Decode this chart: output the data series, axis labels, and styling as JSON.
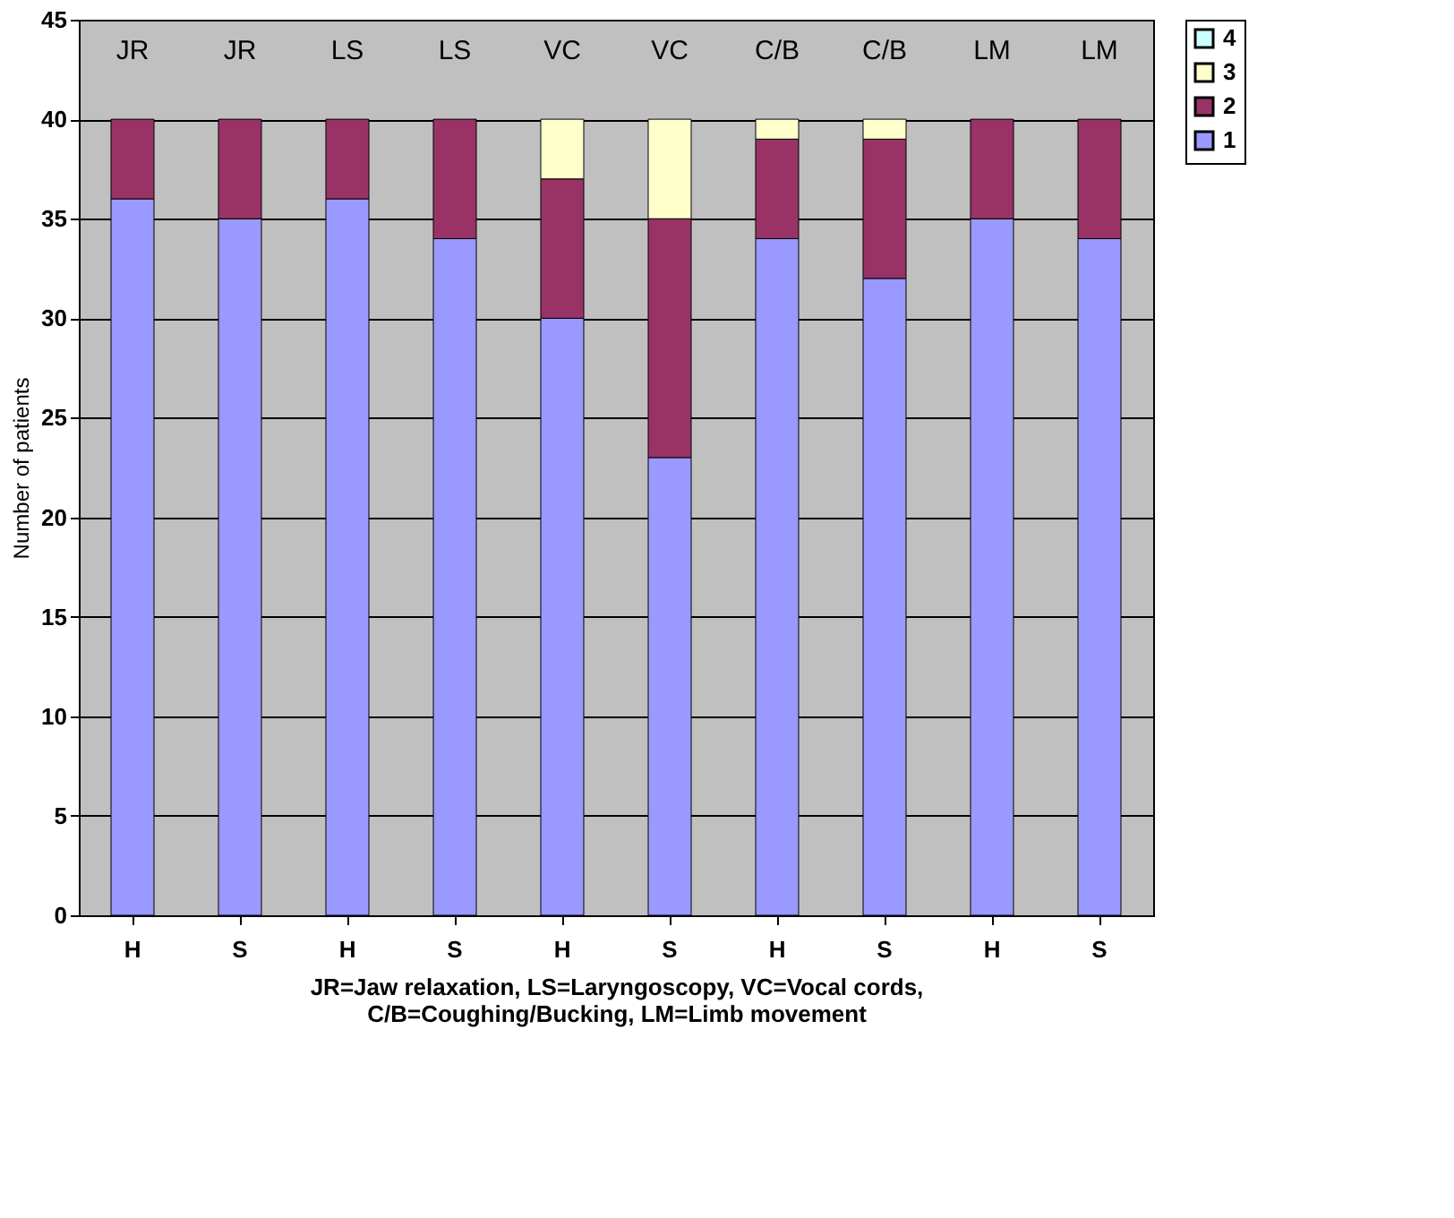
{
  "chart_data": {
    "type": "bar",
    "stacked": true,
    "ylabel": "Number of patients",
    "xlabel": "JR=Jaw relaxation, LS=Laryngoscopy, VC=Vocal cords,\nC/B=Coughing/Bucking, LM=Limb movement",
    "categories": [
      "H",
      "S",
      "H",
      "S",
      "H",
      "S",
      "H",
      "S",
      "H",
      "S"
    ],
    "annotations": [
      "JR",
      "JR",
      "LS",
      "LS",
      "VC",
      "VC",
      "C/B",
      "C/B",
      "LM",
      "LM"
    ],
    "series": [
      {
        "name": "1",
        "color": "#9999ff",
        "values": [
          36,
          35,
          36,
          34,
          30,
          23,
          34,
          32,
          35,
          34
        ]
      },
      {
        "name": "2",
        "color": "#993366",
        "values": [
          4,
          5,
          4,
          6,
          7,
          12,
          5,
          7,
          5,
          6
        ]
      },
      {
        "name": "3",
        "color": "#ffffcc",
        "values": [
          0,
          0,
          0,
          0,
          3,
          5,
          1,
          1,
          0,
          0
        ]
      },
      {
        "name": "4",
        "color": "#ccffff",
        "values": [
          0,
          0,
          0,
          0,
          0,
          0,
          0,
          0,
          0,
          0
        ]
      }
    ],
    "ylim": [
      0,
      45
    ],
    "yticks": [
      0,
      5,
      10,
      15,
      20,
      25,
      30,
      35,
      40,
      45
    ],
    "grid": "y",
    "legend": "right"
  }
}
